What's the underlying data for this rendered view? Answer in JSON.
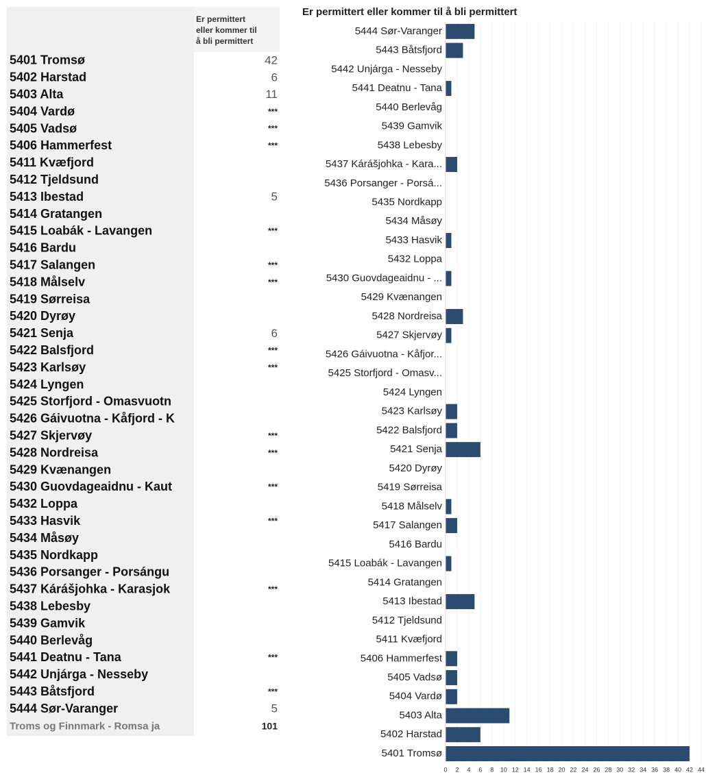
{
  "table": {
    "header": "Er permittert eller kommer til å bli permittert",
    "rows": [
      [
        "5401 Tromsø",
        "42"
      ],
      [
        "5402 Harstad",
        "6"
      ],
      [
        "5403 Alta",
        "11"
      ],
      [
        "5404 Vardø",
        "***"
      ],
      [
        "5405 Vadsø",
        "***"
      ],
      [
        "5406 Hammerfest",
        "***"
      ],
      [
        "5411 Kvæfjord",
        null
      ],
      [
        "5412 Tjeldsund",
        null
      ],
      [
        "5413 Ibestad",
        "5"
      ],
      [
        "5414 Gratangen",
        null
      ],
      [
        "5415 Loabák - Lavangen",
        "***"
      ],
      [
        "5416 Bardu",
        null
      ],
      [
        "5417 Salangen",
        "***"
      ],
      [
        "5418 Målselv",
        "***"
      ],
      [
        "5419 Sørreisa",
        null
      ],
      [
        "5420 Dyrøy",
        null
      ],
      [
        "5421 Senja",
        "6"
      ],
      [
        "5422 Balsfjord",
        "***"
      ],
      [
        "5423 Karlsøy",
        "***"
      ],
      [
        "5424 Lyngen",
        null
      ],
      [
        "5425 Storfjord - Omasvuotn",
        null
      ],
      [
        "5426 Gáivuotna - Kåfjord - K",
        null
      ],
      [
        "5427 Skjervøy",
        "***"
      ],
      [
        "5428 Nordreisa",
        "***"
      ],
      [
        "5429 Kvænangen",
        null
      ],
      [
        "5430 Guovdageaidnu - Kaut",
        "***"
      ],
      [
        "5432 Loppa",
        null
      ],
      [
        "5433 Hasvik",
        "***"
      ],
      [
        "5434 Måsøy",
        null
      ],
      [
        "5435 Nordkapp",
        null
      ],
      [
        "5436 Porsanger - Porsángu",
        null
      ],
      [
        "5437 Kárášjohka - Karasjok",
        "***"
      ],
      [
        "5438 Lebesby",
        null
      ],
      [
        "5439 Gamvik",
        null
      ],
      [
        "5440 Berlevåg",
        null
      ],
      [
        "5441 Deatnu - Tana",
        "***"
      ],
      [
        "5442 Unjárga - Nesseby",
        null
      ],
      [
        "5443 Båtsfjord",
        "***"
      ],
      [
        "5444 Sør-Varanger",
        "5"
      ]
    ],
    "total": [
      "Troms og Finnmark - Romsa ja",
      "101"
    ]
  },
  "chart_data": {
    "type": "bar",
    "orientation": "horizontal",
    "title": "Er permittert eller kommer til å bli permittert",
    "color": "#2b4c6f",
    "categories": [
      "5444 Sør-Varanger",
      "5443 Båtsfjord",
      "5442 Unjárga - Nesseby",
      "5441 Deatnu - Tana",
      "5440 Berlevåg",
      "5439 Gamvik",
      "5438 Lebesby",
      "5437 Kárášjohka - Kara...",
      "5436 Porsanger - Porsá...",
      "5435 Nordkapp",
      "5434 Måsøy",
      "5433 Hasvik",
      "5432 Loppa",
      "5430 Guovdageaidnu - ...",
      "5429 Kvænangen",
      "5428 Nordreisa",
      "5427 Skjervøy",
      "5426 Gáivuotna - Kåfjor...",
      "5425 Storfjord - Omasv...",
      "5424 Lyngen",
      "5423 Karlsøy",
      "5422 Balsfjord",
      "5421 Senja",
      "5420 Dyrøy",
      "5419 Sørreisa",
      "5418 Målselv",
      "5417 Salangen",
      "5416 Bardu",
      "5415 Loabák - Lavangen",
      "5414 Gratangen",
      "5413 Ibestad",
      "5412 Tjeldsund",
      "5411 Kvæfjord",
      "5406 Hammerfest",
      "5405 Vadsø",
      "5404 Vardø",
      "5403 Alta",
      "5402 Harstad",
      "5401 Tromsø"
    ],
    "values": [
      5,
      3,
      null,
      1,
      null,
      null,
      null,
      2,
      null,
      null,
      null,
      1,
      null,
      1,
      null,
      3,
      1,
      null,
      null,
      null,
      2,
      2,
      6,
      null,
      null,
      1,
      2,
      null,
      1,
      null,
      5,
      null,
      null,
      2,
      2,
      2,
      11,
      6,
      42
    ],
    "xlim": [
      0,
      44
    ],
    "xticks": [
      0,
      2,
      4,
      6,
      8,
      10,
      12,
      14,
      16,
      18,
      20,
      22,
      24,
      26,
      28,
      30,
      32,
      34,
      36,
      38,
      40,
      42,
      44
    ],
    "grid": true
  }
}
